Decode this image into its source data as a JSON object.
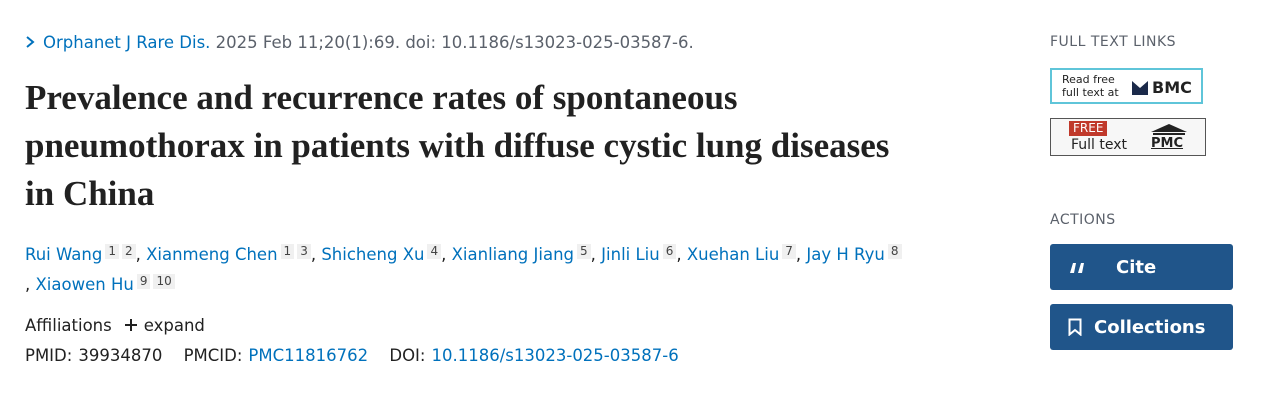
{
  "citation": {
    "journal": "Orphanet J Rare Dis.",
    "details": "2025 Feb 11;20(1):69. doi: 10.1186/s13023-025-03587-6."
  },
  "title": "Prevalence and recurrence rates of spontaneous pneumothorax in patients with diffuse cystic lung diseases in China",
  "authors": [
    {
      "name": "Rui Wang",
      "affiliations": [
        1,
        2
      ]
    },
    {
      "name": "Xianmeng Chen",
      "affiliations": [
        1,
        3
      ]
    },
    {
      "name": "Shicheng Xu",
      "affiliations": [
        4
      ]
    },
    {
      "name": "Xianliang Jiang",
      "affiliations": [
        5
      ]
    },
    {
      "name": "Jinli Liu",
      "affiliations": [
        6
      ]
    },
    {
      "name": "Xuehan Liu",
      "affiliations": [
        7
      ]
    },
    {
      "name": "Jay H Ryu",
      "affiliations": [
        8
      ]
    },
    {
      "name": "Xiaowen Hu",
      "affiliations": [
        9,
        10
      ]
    }
  ],
  "author_separator": ",",
  "affiliations": {
    "label": "Affiliations",
    "toggle": "expand"
  },
  "identifiers": {
    "pmid_label": "PMID:",
    "pmid": "39934870",
    "pmcid_label": "PMCID:",
    "pmcid": "PMC11816762",
    "doi_label": "DOI:",
    "doi": "10.1186/s13023-025-03587-6"
  },
  "sidebar": {
    "full_text_heading": "FULL TEXT LINKS",
    "bmc": {
      "line1": "Read free",
      "line2": "full text at",
      "brand": "BMC"
    },
    "pmc": {
      "badge": "FREE",
      "text": "Full text",
      "brand": "PMC"
    },
    "actions_heading": "ACTIONS",
    "buttons": [
      "Cite",
      "Collections"
    ]
  }
}
